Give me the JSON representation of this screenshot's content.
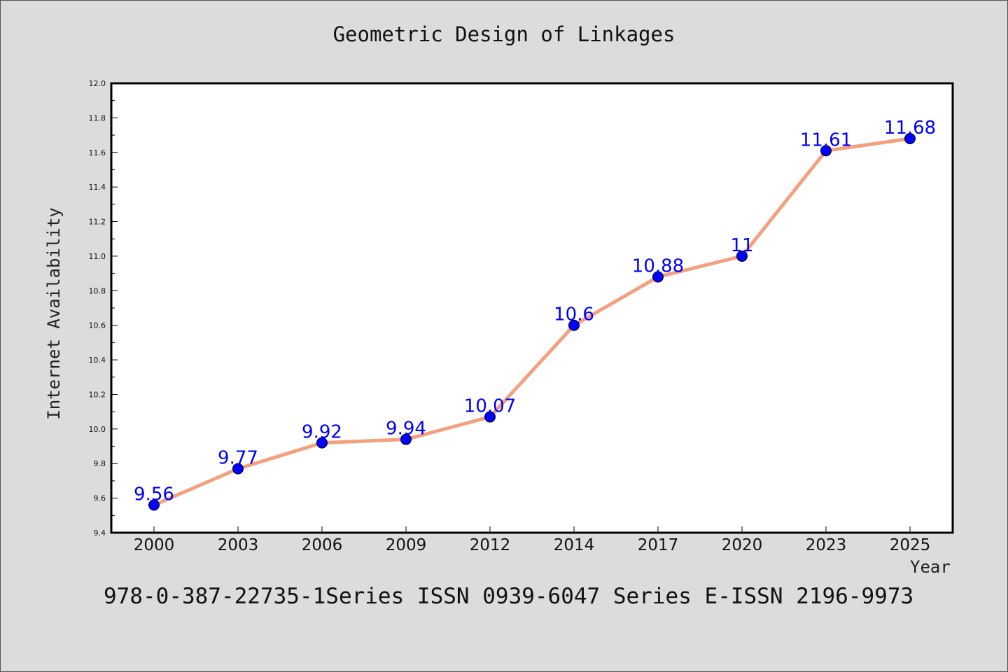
{
  "page": {
    "title": "Geometric Design of Linkages",
    "footer": "978-0-387-22735-1Series ISSN 0939-6047 Series E-ISSN 2196-9973"
  },
  "colors": {
    "background": "#dcdcdc",
    "plot_background": "#ffffff",
    "line": "#f4a07f",
    "marker": "#0000ff",
    "data_label": "#0000ff"
  },
  "chart_data": {
    "type": "line",
    "title": "Geometric Design of Linkages",
    "xlabel": "Year",
    "ylabel": "Internet Availability",
    "categories": [
      "2000",
      "2003",
      "2006",
      "2009",
      "2012",
      "2014",
      "2017",
      "2020",
      "2023",
      "2025"
    ],
    "series": [
      {
        "values": [
          9.56,
          9.77,
          9.92,
          9.94,
          10.07,
          10.6,
          10.88,
          11,
          11.61,
          11.68
        ],
        "labels": [
          "9.56",
          "9.77",
          "9.92",
          "9.94",
          "10.07",
          "10.6",
          "10.88",
          "11",
          "11.61",
          "11.68"
        ]
      }
    ],
    "ylim": [
      9.4,
      12.0
    ],
    "yticks": [
      "9.4",
      "9.6",
      "9.8",
      "10.0",
      "10.2",
      "10.4",
      "10.6",
      "10.8",
      "11.0",
      "11.2",
      "11.4",
      "11.6",
      "11.8",
      "12.0"
    ],
    "grid": false,
    "legend": "none"
  }
}
